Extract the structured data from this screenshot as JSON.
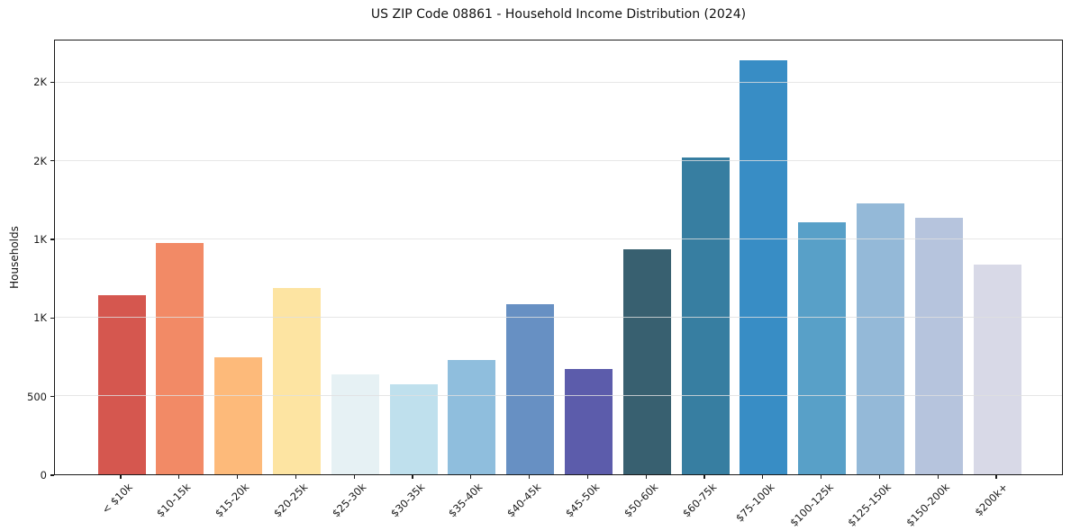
{
  "figure": {
    "background": "#ffffff"
  },
  "chart_data": {
    "type": "bar",
    "title": "US ZIP Code 08861 - Household Income Distribution (2024)",
    "xlabel": "",
    "ylabel": "Households",
    "categories": [
      "< $10k",
      "$10-15k",
      "$15-20k",
      "$20-25k",
      "$25-30k",
      "$30-35k",
      "$35-40k",
      "$40-45k",
      "$45-50k",
      "$50-60k",
      "$60-75k",
      "$75-100k",
      "$100-125k",
      "$125-150k",
      "$150-200k",
      "$200k+"
    ],
    "values": [
      1140,
      1470,
      745,
      1185,
      635,
      570,
      725,
      1080,
      670,
      1430,
      2015,
      2630,
      1600,
      1725,
      1630,
      1335
    ],
    "bar_colors": [
      "#d5574f",
      "#f28a66",
      "#fdba7a",
      "#fde4a2",
      "#e6f1f4",
      "#bfe0ed",
      "#8fbedd",
      "#6790c3",
      "#5c5cab",
      "#386070",
      "#377ea1",
      "#388dc5",
      "#58a0c8",
      "#94b9d8",
      "#b6c4dd",
      "#d8d9e7"
    ],
    "ylim": [
      0,
      2770
    ],
    "yticks": {
      "values": [
        0,
        500,
        1000,
        1500,
        2000,
        2500
      ],
      "labels": [
        "0",
        "500",
        "1K",
        "1K",
        "2K",
        "2K"
      ]
    },
    "grid": "horizontal",
    "legend": "none",
    "colors": {
      "gridline": "#e0e0e0",
      "spine": "#1a1a1a",
      "text": "#1a1a1a"
    }
  }
}
